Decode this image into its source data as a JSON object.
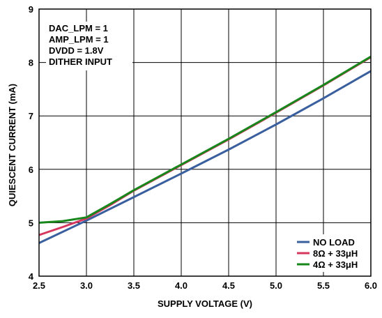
{
  "chart_data": {
    "type": "line",
    "title": "",
    "xlabel": "SUPPLY VOLTAGE (V)",
    "ylabel": "QUIESCENT CURRENT (mA)",
    "xlim": [
      2.5,
      6.0
    ],
    "ylim": [
      4,
      9
    ],
    "x_ticks": [
      "2.5",
      "3.0",
      "3.5",
      "4.0",
      "4.5",
      "5.0",
      "5.5",
      "6.0"
    ],
    "y_ticks": [
      "4",
      "5",
      "6",
      "7",
      "8",
      "9"
    ],
    "grid": true,
    "legend_position": "bottom-right",
    "annotations": [
      "DAC_LPM = 1",
      "AMP_LPM = 1",
      "DVDD = 1.8V",
      "DITHER INPUT"
    ],
    "series": [
      {
        "name": "NO LOAD",
        "color": "#3a5f9e",
        "points": [
          [
            2.5,
            4.62
          ],
          [
            3.0,
            5.04
          ],
          [
            3.5,
            5.48
          ],
          [
            4.0,
            5.92
          ],
          [
            4.5,
            6.37
          ],
          [
            5.0,
            6.84
          ],
          [
            5.5,
            7.33
          ],
          [
            6.0,
            7.84
          ]
        ]
      },
      {
        "name": "8Ω + 33μH",
        "color": "#d6375e",
        "points": [
          [
            2.5,
            4.77
          ],
          [
            2.75,
            4.92
          ],
          [
            3.0,
            5.08
          ],
          [
            3.25,
            5.33
          ],
          [
            3.5,
            5.6
          ],
          [
            4.0,
            6.08
          ],
          [
            4.5,
            6.56
          ],
          [
            5.0,
            7.06
          ],
          [
            5.5,
            7.57
          ],
          [
            6.0,
            8.1
          ]
        ]
      },
      {
        "name": "4Ω + 33μH",
        "color": "#17871b",
        "points": [
          [
            2.5,
            5.0
          ],
          [
            2.75,
            5.03
          ],
          [
            3.0,
            5.1
          ],
          [
            3.25,
            5.35
          ],
          [
            3.5,
            5.61
          ],
          [
            4.0,
            6.09
          ],
          [
            4.5,
            6.57
          ],
          [
            5.0,
            7.07
          ],
          [
            5.5,
            7.58
          ],
          [
            6.0,
            8.11
          ]
        ]
      }
    ]
  }
}
